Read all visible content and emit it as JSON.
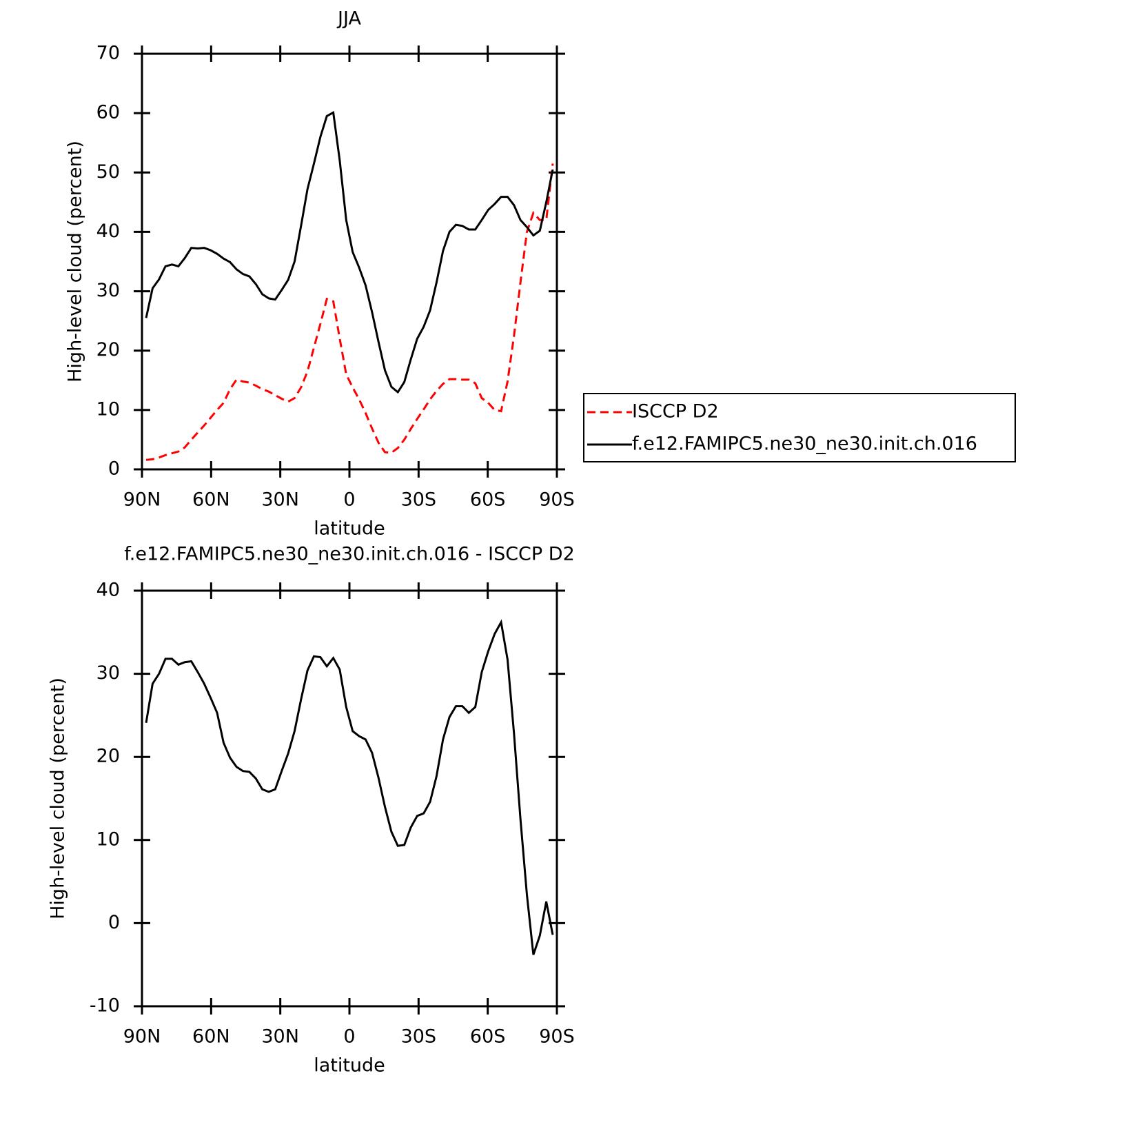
{
  "chart_data": [
    {
      "type": "line",
      "title": "JJA",
      "xlabel": "latitude",
      "ylabel": "High-level cloud (percent)",
      "x": [
        88.2,
        85.4,
        82.6,
        79.8,
        77.0,
        74.2,
        71.4,
        68.6,
        65.8,
        63.0,
        60.2,
        57.4,
        54.6,
        51.8,
        49.0,
        46.2,
        43.4,
        40.6,
        37.8,
        35.0,
        32.2,
        29.4,
        26.6,
        23.8,
        21.0,
        18.2,
        15.4,
        12.6,
        9.8,
        7.0,
        4.2,
        1.4,
        -1.4,
        -4.2,
        -7.0,
        -9.8,
        -12.6,
        -15.4,
        -18.2,
        -21.0,
        -23.8,
        -26.6,
        -29.4,
        -32.2,
        -35.0,
        -37.8,
        -40.6,
        -43.4,
        -46.2,
        -49.0,
        -51.8,
        -54.6,
        -57.4,
        -60.2,
        -63.0,
        -65.8,
        -68.6,
        -71.4,
        -74.2,
        -77.0,
        -79.8,
        -82.6,
        -85.4,
        -88.2
      ],
      "series": [
        {
          "name": "ISCCP D2",
          "color": "#ff0000",
          "linestyle": "dashed",
          "values": [
            1.6,
            1.7,
            2.0,
            2.4,
            2.7,
            3.0,
            3.7,
            5.0,
            6.2,
            7.4,
            8.7,
            10.0,
            11.2,
            13.5,
            15.1,
            14.8,
            14.6,
            14.1,
            13.5,
            13.1,
            12.5,
            11.9,
            11.4,
            12.0,
            13.8,
            16.5,
            20.5,
            24.5,
            28.7,
            28.3,
            22.0,
            16.0,
            13.8,
            11.8,
            9.5,
            6.9,
            4.5,
            2.9,
            2.8,
            3.6,
            5.0,
            6.8,
            8.5,
            10.1,
            11.8,
            13.2,
            14.4,
            15.2,
            15.2,
            15.1,
            15.1,
            14.5,
            12.0,
            11.2,
            10.0,
            9.8,
            14.8,
            22.5,
            31.5,
            40.0,
            43.2,
            42.0,
            42.0,
            51.5
          ]
        },
        {
          "name": "f.e12.FAMIPC5.ne30_ne30.init.ch.016",
          "color": "#000000",
          "linestyle": "solid",
          "values": [
            25.5,
            30.5,
            32.0,
            34.2,
            34.5,
            34.2,
            35.6,
            37.3,
            37.2,
            37.3,
            36.9,
            36.3,
            35.5,
            34.9,
            33.7,
            32.9,
            32.5,
            31.2,
            29.5,
            28.8,
            28.6,
            30.2,
            31.9,
            35.0,
            41.0,
            47.2,
            51.5,
            56.0,
            59.5,
            60.1,
            52.0,
            42.0,
            36.6,
            34.0,
            31.0,
            26.5,
            21.5,
            16.7,
            13.9,
            13.0,
            14.7,
            18.5,
            22.0,
            24.0,
            26.8,
            31.5,
            36.8,
            40.0,
            41.2,
            41.0,
            40.4,
            40.4,
            42.0,
            43.7,
            44.7,
            45.9,
            45.9,
            44.5,
            42.0,
            40.8,
            39.4,
            40.2,
            45.0,
            50.5
          ]
        }
      ],
      "xlim": [
        90,
        -90
      ],
      "xticks": [
        {
          "value": 90,
          "label": "90N"
        },
        {
          "value": 60,
          "label": "60N"
        },
        {
          "value": 30,
          "label": "30N"
        },
        0,
        {
          "value": -30,
          "label": "30S"
        },
        {
          "value": -60,
          "label": "60S"
        },
        {
          "value": -90,
          "label": "90S"
        }
      ],
      "ylim": [
        0,
        70
      ],
      "yticks": [
        0,
        10,
        20,
        30,
        40,
        50,
        60,
        70
      ],
      "legend": "outside-right"
    },
    {
      "type": "line",
      "title": "f.e12.FAMIPC5.ne30_ne30.init.ch.016 - ISCCP D2",
      "xlabel": "latitude",
      "ylabel": "High-level cloud (percent)",
      "x": [
        88.2,
        85.4,
        82.6,
        79.8,
        77.0,
        74.2,
        71.4,
        68.6,
        65.8,
        63.0,
        60.2,
        57.4,
        54.6,
        51.8,
        49.0,
        46.2,
        43.4,
        40.6,
        37.8,
        35.0,
        32.2,
        29.4,
        26.6,
        23.8,
        21.0,
        18.2,
        15.4,
        12.6,
        9.8,
        7.0,
        4.2,
        1.4,
        -1.4,
        -4.2,
        -7.0,
        -9.8,
        -12.6,
        -15.4,
        -18.2,
        -21.0,
        -23.8,
        -26.6,
        -29.4,
        -32.2,
        -35.0,
        -37.8,
        -40.6,
        -43.4,
        -46.2,
        -49.0,
        -51.8,
        -54.6,
        -57.4,
        -60.2,
        -63.0,
        -65.8,
        -68.6,
        -71.4,
        -74.2,
        -77.0,
        -79.8,
        -82.6,
        -85.4,
        -88.2
      ],
      "series": [
        {
          "color": "#000000",
          "linestyle": "solid",
          "values": [
            24.1,
            28.8,
            30.0,
            31.8,
            31.8,
            31.1,
            31.4,
            31.5,
            30.2,
            28.8,
            27.1,
            25.3,
            21.7,
            19.9,
            18.8,
            18.3,
            18.2,
            17.4,
            16.1,
            15.8,
            16.1,
            18.3,
            20.4,
            23.1,
            26.9,
            30.4,
            32.1,
            32.0,
            30.9,
            31.9,
            30.5,
            26.0,
            23.1,
            22.5,
            22.1,
            20.5,
            17.5,
            14.0,
            11.0,
            9.3,
            9.4,
            11.5,
            12.9,
            13.2,
            14.6,
            17.7,
            22.1,
            24.8,
            26.1,
            26.1,
            25.3,
            26.0,
            30.2,
            32.7,
            34.8,
            36.2,
            31.7,
            22.8,
            12.5,
            3.4,
            -3.8,
            -1.5,
            2.6,
            -1.4
          ]
        }
      ],
      "xlim": [
        90,
        -90
      ],
      "xticks": [
        {
          "value": 90,
          "label": "90N"
        },
        {
          "value": 60,
          "label": "60N"
        },
        {
          "value": 30,
          "label": "30N"
        },
        0,
        {
          "value": -30,
          "label": "30S"
        },
        {
          "value": -60,
          "label": "60S"
        },
        {
          "value": -90,
          "label": "90S"
        }
      ],
      "ylim": [
        -10,
        40
      ],
      "yticks": [
        -10,
        0,
        10,
        20,
        30,
        40
      ]
    }
  ]
}
